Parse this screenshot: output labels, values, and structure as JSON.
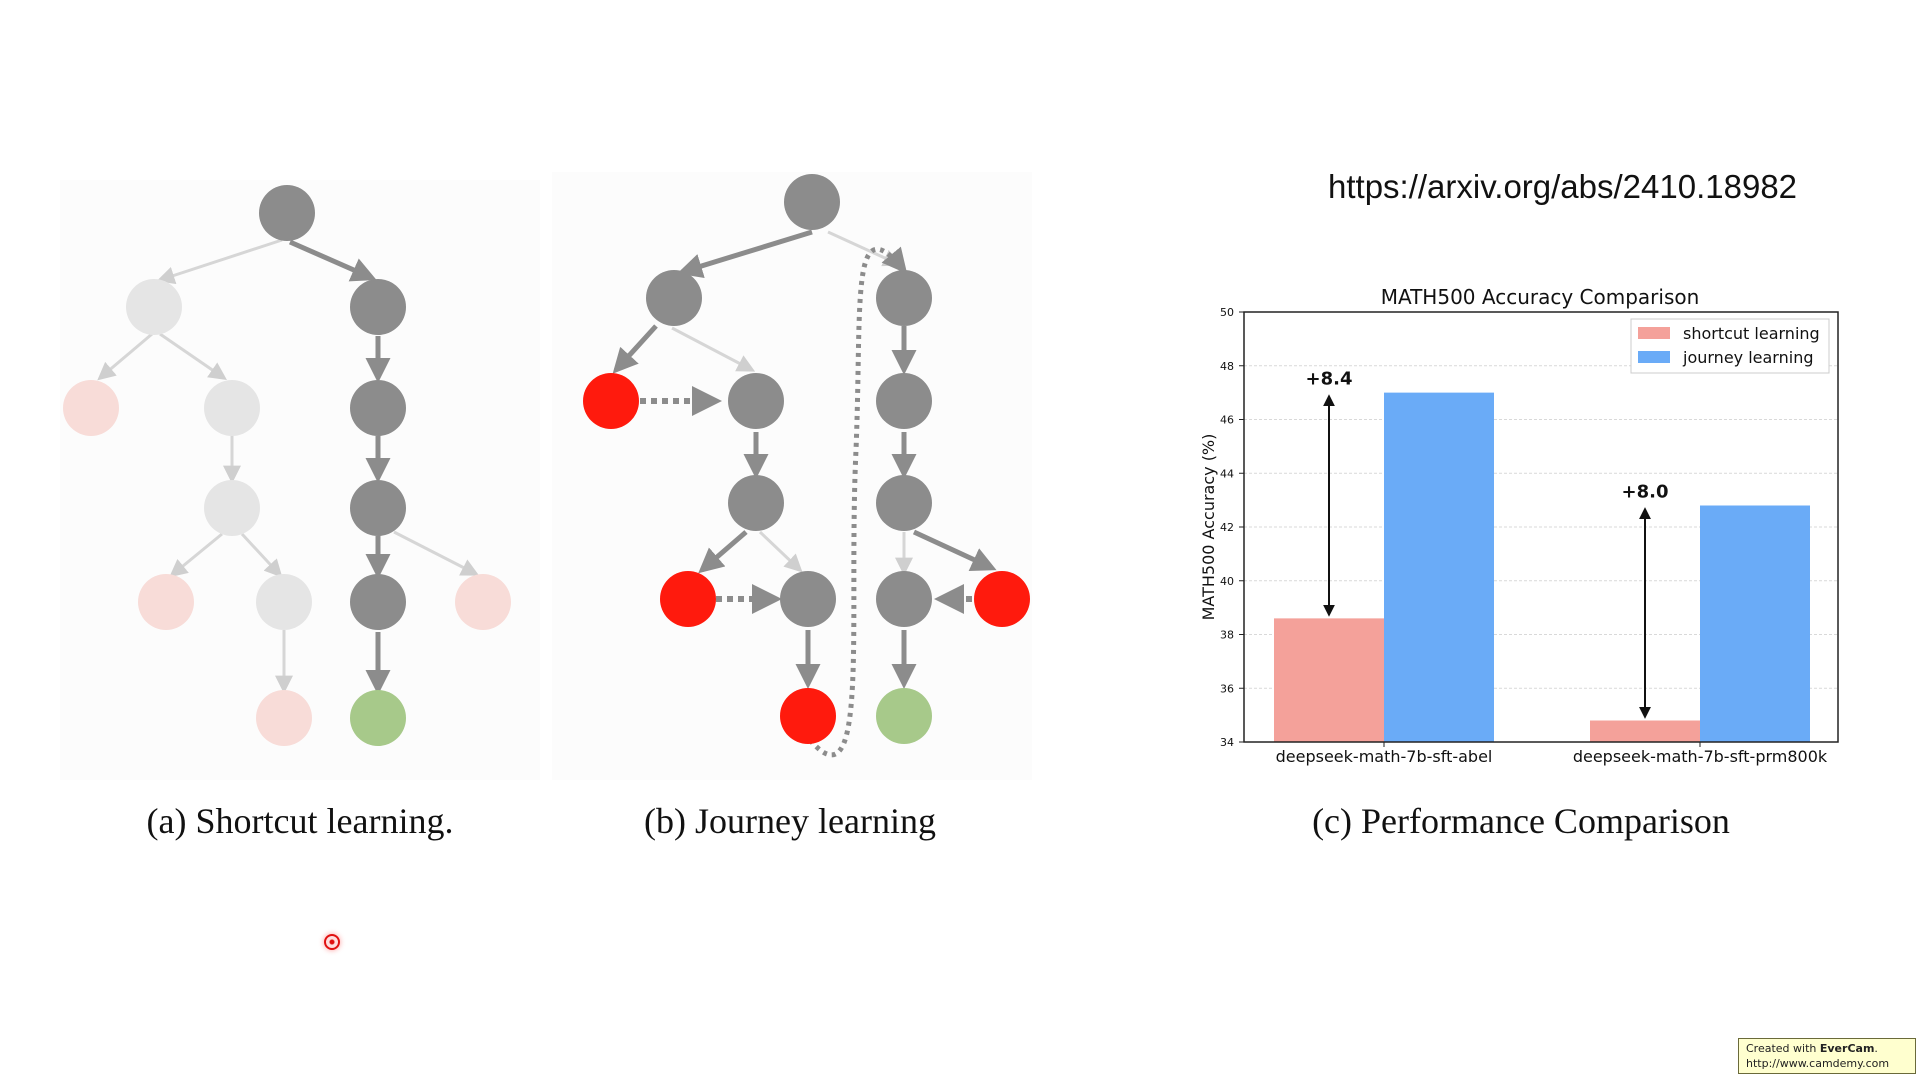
{
  "url_text": "https://arxiv.org/abs/2410.18982",
  "captions": {
    "a": "(a) Shortcut learning.",
    "b": "(b) Journey learning",
    "c": "(c) Performance Comparison"
  },
  "colors": {
    "node_gray": "#8c8c8c",
    "node_faded": "#e5e5e5",
    "node_wrong": "#ff1a0d",
    "node_wrong_faded": "#f8dcd8",
    "node_correct": "#a7c98a",
    "bar_shortcut": "#f4a19a",
    "bar_journey": "#6aabf7"
  },
  "chart_data": {
    "type": "bar",
    "title": "MATH500 Accuracy Comparison",
    "ylabel": "MATH500 Accuracy (%)",
    "xlabel": "",
    "categories": [
      "deepseek-math-7b-sft-abel",
      "deepseek-math-7b-sft-prm800k"
    ],
    "series": [
      {
        "name": "shortcut learning",
        "values": [
          38.6,
          34.8
        ]
      },
      {
        "name": "journey learning",
        "values": [
          47.0,
          42.8
        ]
      }
    ],
    "ylim": [
      34,
      50
    ],
    "yticks": [
      "34",
      "36",
      "38",
      "40",
      "42",
      "44",
      "46",
      "48",
      "50"
    ],
    "annotations": [
      "+8.4",
      "+8.0"
    ],
    "grid": true,
    "legend_position": "top-right"
  },
  "watermark": {
    "line1_prefix": "Created with",
    "line1_brand": "EverCam",
    "line2": "http://www.camdemy.com"
  }
}
